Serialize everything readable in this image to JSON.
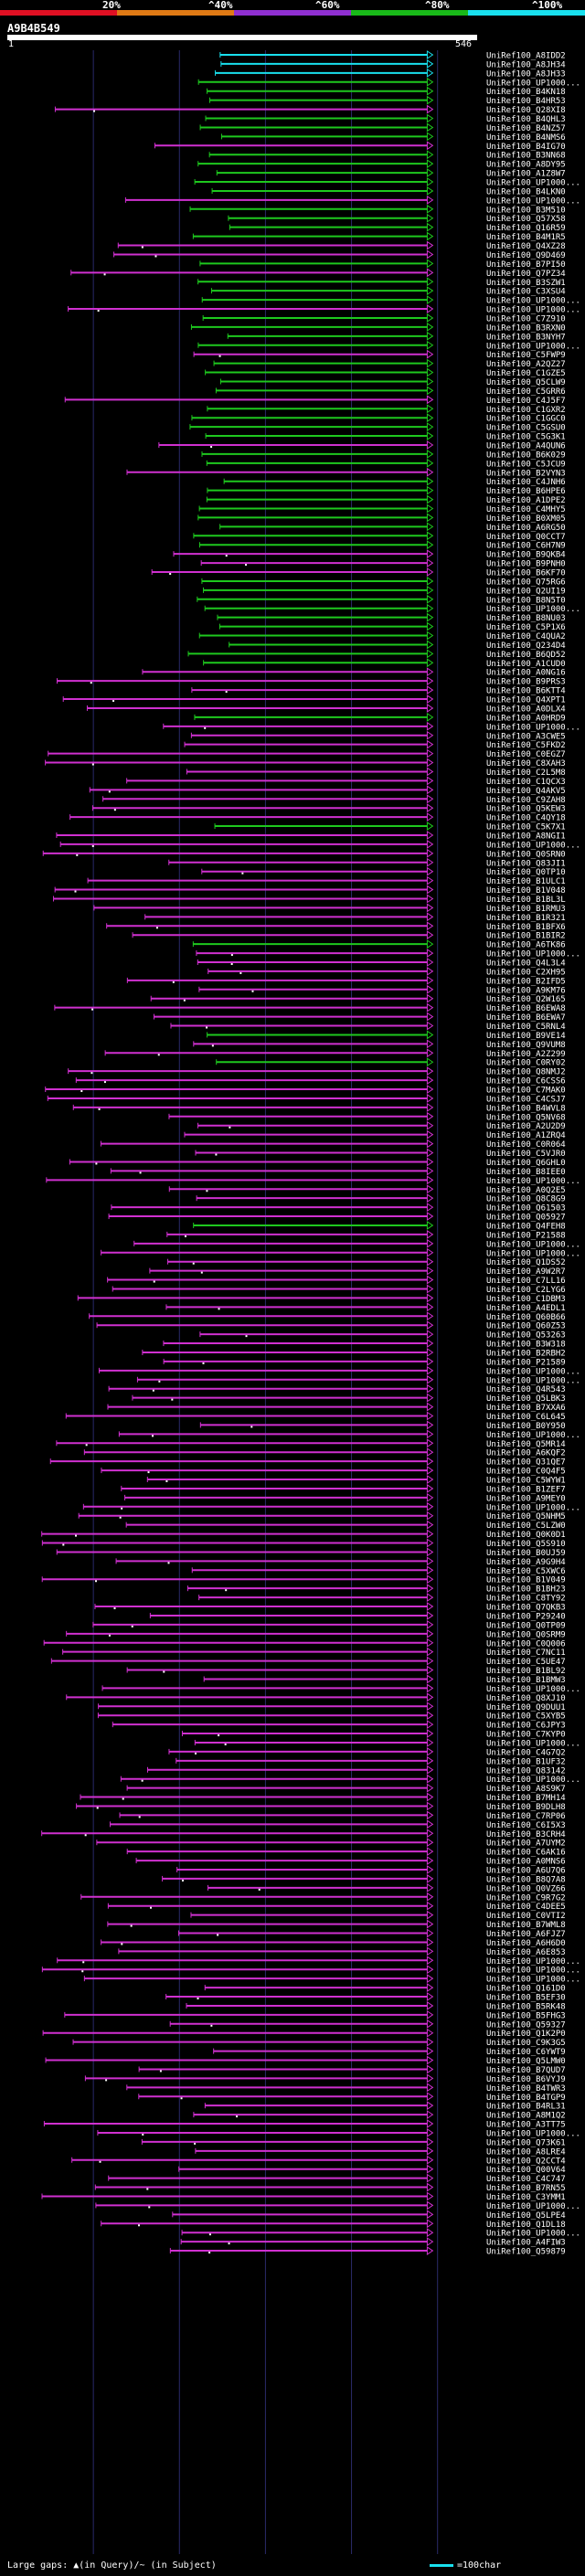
{
  "scale": {
    "labels": [
      "20%",
      "^40%",
      "^60%",
      "^80%",
      "^100%"
    ],
    "segments": [
      {
        "label": "0-20",
        "color": "#e01023"
      },
      {
        "label": "20-40",
        "color": "#e07a15"
      },
      {
        "label": "40-60",
        "color": "#8f2fd0"
      },
      {
        "label": "60-80",
        "color": "#19b919"
      },
      {
        "label": "80-100",
        "color": "#19e0ee"
      }
    ]
  },
  "query": {
    "id": "A9B4B549",
    "start": "1",
    "end": "546"
  },
  "colors": {
    "cyan": "#19e0ee",
    "green": "#1ec81e",
    "magenta": "#d030d0",
    "grid": "#2a2a6a"
  },
  "hits": [
    {
      "label": "UniRef100_A8IDD2",
      "c": "c"
    },
    {
      "label": "UniRef100_A8JH34",
      "c": "c"
    },
    {
      "label": "UniRef100_A8JH33",
      "c": "c"
    },
    {
      "label": "UniRef100_UP1000...",
      "c": "g"
    },
    {
      "label": "UniRef100_B4KN18",
      "c": "g"
    },
    {
      "label": "UniRef100_B4HR53",
      "c": "g"
    },
    {
      "label": "UniRef100_Q28XI8",
      "c": "m"
    },
    {
      "label": "UniRef100_B4QHL3",
      "c": "g"
    },
    {
      "label": "UniRef100_B4NZ57",
      "c": "g"
    },
    {
      "label": "UniRef100_B4NMS6",
      "c": "g"
    },
    {
      "label": "UniRef100_B4IG70",
      "c": "m"
    },
    {
      "label": "UniRef100_B3NN68",
      "c": "g"
    },
    {
      "label": "UniRef100_A8DY95",
      "c": "g"
    },
    {
      "label": "UniRef100_A1Z8W7",
      "c": "g"
    },
    {
      "label": "UniRef100_UP1000...",
      "c": "g"
    },
    {
      "label": "UniRef100_B4LKN0",
      "c": "g"
    },
    {
      "label": "UniRef100_UP1000...",
      "c": "m"
    },
    {
      "label": "UniRef100_B3M510",
      "c": "g"
    },
    {
      "label": "UniRef100_Q57X58",
      "c": "g"
    },
    {
      "label": "UniRef100_Q16R59",
      "c": "g"
    },
    {
      "label": "UniRef100_B4M1R5",
      "c": "g"
    },
    {
      "label": "UniRef100_Q4XZ28",
      "c": "m"
    },
    {
      "label": "UniRef100_Q9D469",
      "c": "m"
    },
    {
      "label": "UniRef100_B7PI50",
      "c": "g"
    },
    {
      "label": "UniRef100_Q7PZ34",
      "c": "m"
    },
    {
      "label": "UniRef100_B3SZW1",
      "c": "g"
    },
    {
      "label": "UniRef100_C3XSU4",
      "c": "g"
    },
    {
      "label": "UniRef100_UP1000...",
      "c": "g"
    },
    {
      "label": "UniRef100_UP1000...",
      "c": "m"
    },
    {
      "label": "UniRef100_C7Z910",
      "c": "g"
    },
    {
      "label": "UniRef100_B3RXN0",
      "c": "g"
    },
    {
      "label": "UniRef100_B3NYH7",
      "c": "g"
    },
    {
      "label": "UniRef100_UP1000...",
      "c": "g"
    },
    {
      "label": "UniRef100_C5FWP9",
      "c": "m"
    },
    {
      "label": "UniRef100_A2QZ27",
      "c": "g"
    },
    {
      "label": "UniRef100_C1GZE5",
      "c": "g"
    },
    {
      "label": "UniRef100_Q5CLW9",
      "c": "g"
    },
    {
      "label": "UniRef100_C5GRR6",
      "c": "g"
    },
    {
      "label": "UniRef100_C4J5F7",
      "c": "m"
    },
    {
      "label": "UniRef100_C1GXR2",
      "c": "g"
    },
    {
      "label": "UniRef100_C1GGC0",
      "c": "g"
    },
    {
      "label": "UniRef100_C5GSU0",
      "c": "g"
    },
    {
      "label": "UniRef100_C5G3K1",
      "c": "g"
    },
    {
      "label": "UniRef100_A4QUN6",
      "c": "m"
    },
    {
      "label": "UniRef100_B6K029",
      "c": "g"
    },
    {
      "label": "UniRef100_C5JCU9",
      "c": "g"
    },
    {
      "label": "UniRef100_B2VYN3",
      "c": "m"
    },
    {
      "label": "UniRef100_C4JNH6",
      "c": "g"
    },
    {
      "label": "UniRef100_B6HPE6",
      "c": "g"
    },
    {
      "label": "UniRef100_A1DPE2",
      "c": "g"
    },
    {
      "label": "UniRef100_C4MHY5",
      "c": "g"
    },
    {
      "label": "UniRef100_B0XM05",
      "c": "g"
    },
    {
      "label": "UniRef100_A6RG50",
      "c": "g"
    },
    {
      "label": "UniRef100_Q0CCT7",
      "c": "g"
    },
    {
      "label": "UniRef100_C6H7N9",
      "c": "g"
    },
    {
      "label": "UniRef100_B9QKB4",
      "c": "m"
    },
    {
      "label": "UniRef100_B9PNH0",
      "c": "m"
    },
    {
      "label": "UniRef100_B6KF70",
      "c": "m"
    },
    {
      "label": "UniRef100_Q75RG6",
      "c": "g"
    },
    {
      "label": "UniRef100_Q2UI19",
      "c": "g"
    },
    {
      "label": "UniRef100_B8N5T0",
      "c": "g"
    },
    {
      "label": "UniRef100_UP1000...",
      "c": "g"
    },
    {
      "label": "UniRef100_B8NU03",
      "c": "g"
    },
    {
      "label": "UniRef100_C5P1X6",
      "c": "g"
    },
    {
      "label": "UniRef100_C4QUA2",
      "c": "g"
    },
    {
      "label": "UniRef100_Q234D4",
      "c": "g"
    },
    {
      "label": "UniRef100_B6QD52",
      "c": "g"
    },
    {
      "label": "UniRef100_A1CUD0",
      "c": "g"
    },
    {
      "label": "UniRef100_A0NG16",
      "c": "m"
    },
    {
      "label": "UniRef100_B9PRS3",
      "c": "m"
    },
    {
      "label": "UniRef100_B6KTT4",
      "c": "m"
    },
    {
      "label": "UniRef100_Q4XPT1",
      "c": "m"
    },
    {
      "label": "UniRef100_A0DLX4",
      "c": "m"
    },
    {
      "label": "UniRef100_A0HRD9",
      "c": "g"
    },
    {
      "label": "UniRef100_UP1000...",
      "c": "m"
    },
    {
      "label": "UniRef100_A3CWE5",
      "c": "m"
    },
    {
      "label": "UniRef100_C5FKD2",
      "c": "m"
    },
    {
      "label": "UniRef100_C0EGZ7",
      "c": "m"
    },
    {
      "label": "UniRef100_C8XAH3",
      "c": "m"
    },
    {
      "label": "UniRef100_C2L5M8",
      "c": "m"
    },
    {
      "label": "UniRef100_C1QCX3",
      "c": "m"
    },
    {
      "label": "UniRef100_Q4AKV5",
      "c": "m"
    },
    {
      "label": "UniRef100_C9ZAH8",
      "c": "m"
    },
    {
      "label": "UniRef100_Q5KEW3",
      "c": "m"
    },
    {
      "label": "UniRef100_C4QY18",
      "c": "m"
    },
    {
      "label": "UniRef100_C5K7X1",
      "c": "g"
    },
    {
      "label": "UniRef100_A8NGI1",
      "c": "m"
    },
    {
      "label": "UniRef100_UP1000...",
      "c": "m"
    },
    {
      "label": "UniRef100_Q0SRN0",
      "c": "m"
    },
    {
      "label": "UniRef100_Q83JI1",
      "c": "m"
    },
    {
      "label": "UniRef100_Q0TP10",
      "c": "m"
    },
    {
      "label": "UniRef100_B1ULC1",
      "c": "m"
    },
    {
      "label": "UniRef100_B1V048",
      "c": "m"
    },
    {
      "label": "UniRef100_B1BL3L",
      "c": "m"
    },
    {
      "label": "UniRef100_B1RMU3",
      "c": "m"
    },
    {
      "label": "UniRef100_B1R321",
      "c": "m"
    },
    {
      "label": "UniRef100_B1BFX6",
      "c": "m"
    },
    {
      "label": "UniRef100_B1BIR2",
      "c": "m"
    },
    {
      "label": "UniRef100_A6TK86",
      "c": "g"
    },
    {
      "label": "UniRef100_UP1000...",
      "c": "m"
    },
    {
      "label": "UniRef100_Q4L3L4",
      "c": "m"
    },
    {
      "label": "UniRef100_C2XH95",
      "c": "m"
    },
    {
      "label": "UniRef100_B2IFD5",
      "c": "m"
    },
    {
      "label": "UniRef100_A9KM76",
      "c": "m"
    },
    {
      "label": "UniRef100_Q2W165",
      "c": "m"
    },
    {
      "label": "UniRef100_B6EWA8",
      "c": "m"
    },
    {
      "label": "UniRef100_B6EWA7",
      "c": "m"
    },
    {
      "label": "UniRef100_C5RNL4",
      "c": "m"
    },
    {
      "label": "UniRef100_B9VE14",
      "c": "g"
    },
    {
      "label": "UniRef100_Q9VUM8",
      "c": "m"
    },
    {
      "label": "UniRef100_A2Z299",
      "c": "m"
    },
    {
      "label": "UniRef100_C0RY02",
      "c": "g"
    },
    {
      "label": "UniRef100_Q8NMJ2",
      "c": "m"
    },
    {
      "label": "UniRef100_C6CSS6",
      "c": "m"
    },
    {
      "label": "UniRef100_C7MAK0",
      "c": "m"
    },
    {
      "label": "UniRef100_C4CSJ7",
      "c": "m"
    },
    {
      "label": "UniRef100_B4WVL8",
      "c": "m"
    },
    {
      "label": "UniRef100_Q5NV68",
      "c": "m"
    },
    {
      "label": "UniRef100_A2U2D9",
      "c": "m"
    },
    {
      "label": "UniRef100_A1ZRQ4",
      "c": "m"
    },
    {
      "label": "UniRef100_C0R064",
      "c": "m"
    },
    {
      "label": "UniRef100_C5VJR0",
      "c": "m"
    },
    {
      "label": "UniRef100_Q6GHL0",
      "c": "m"
    },
    {
      "label": "UniRef100_B8IEE0",
      "c": "m"
    },
    {
      "label": "UniRef100_UP1000...",
      "c": "m"
    },
    {
      "label": "UniRef100_A0Q2E5",
      "c": "m"
    },
    {
      "label": "UniRef100_Q8C8G9",
      "c": "m"
    },
    {
      "label": "UniRef100_Q61503",
      "c": "m"
    },
    {
      "label": "UniRef100_Q05927",
      "c": "m"
    },
    {
      "label": "UniRef100_Q4FEH8",
      "c": "g"
    },
    {
      "label": "UniRef100_P21588",
      "c": "m"
    },
    {
      "label": "UniRef100_UP1000...",
      "c": "m"
    },
    {
      "label": "UniRef100_UP1000...",
      "c": "m"
    },
    {
      "label": "UniRef100_Q1DS52",
      "c": "m"
    },
    {
      "label": "UniRef100_A9W2R7",
      "c": "m"
    },
    {
      "label": "UniRef100_C7LL16",
      "c": "m"
    },
    {
      "label": "UniRef100_C2LYG6",
      "c": "m"
    },
    {
      "label": "UniRef100_C1DBM3",
      "c": "m"
    },
    {
      "label": "UniRef100_A4EDL1",
      "c": "m"
    },
    {
      "label": "UniRef100_Q60B66",
      "c": "m"
    },
    {
      "label": "UniRef100_Q60Z53",
      "c": "m"
    },
    {
      "label": "UniRef100_Q53263",
      "c": "m"
    },
    {
      "label": "UniRef100_B3W318",
      "c": "m"
    },
    {
      "label": "UniRef100_B2RBH2",
      "c": "m"
    },
    {
      "label": "UniRef100_P21589",
      "c": "m"
    },
    {
      "label": "UniRef100_UP1000...",
      "c": "m"
    },
    {
      "label": "UniRef100_UP1000...",
      "c": "m"
    },
    {
      "label": "UniRef100_Q4R543",
      "c": "m"
    },
    {
      "label": "UniRef100_Q5LBK3",
      "c": "m"
    },
    {
      "label": "UniRef100_B7XXA6",
      "c": "m"
    },
    {
      "label": "UniRef100_C6L645",
      "c": "m"
    },
    {
      "label": "UniRef100_B0Y950",
      "c": "m"
    },
    {
      "label": "UniRef100_UP1000...",
      "c": "m"
    },
    {
      "label": "UniRef100_Q5MR14",
      "c": "m"
    },
    {
      "label": "UniRef100_A6KQF2",
      "c": "m"
    },
    {
      "label": "UniRef100_Q31QE7",
      "c": "m"
    },
    {
      "label": "UniRef100_C0Q4F5",
      "c": "m"
    },
    {
      "label": "UniRef100_C5WYW1",
      "c": "m"
    },
    {
      "label": "UniRef100_B1ZEF7",
      "c": "m"
    },
    {
      "label": "UniRef100_A9MEY0",
      "c": "m"
    },
    {
      "label": "UniRef100_UP1000...",
      "c": "m"
    },
    {
      "label": "UniRef100_Q5NHM5",
      "c": "m"
    },
    {
      "label": "UniRef100_C5LZW0",
      "c": "m"
    },
    {
      "label": "UniRef100_Q0K0D1",
      "c": "m"
    },
    {
      "label": "UniRef100_Q5S910",
      "c": "m"
    },
    {
      "label": "UniRef100_B0UJ59",
      "c": "m"
    },
    {
      "label": "UniRef100_A9G9H4",
      "c": "m"
    },
    {
      "label": "UniRef100_C5XWC6",
      "c": "m"
    },
    {
      "label": "UniRef100_B1V049",
      "c": "m"
    },
    {
      "label": "UniRef100_B1BH23",
      "c": "m"
    },
    {
      "label": "UniRef100_C8TY92",
      "c": "m"
    },
    {
      "label": "UniRef100_Q7QKB3",
      "c": "m"
    },
    {
      "label": "UniRef100_P29240",
      "c": "m"
    },
    {
      "label": "UniRef100_Q0TP09",
      "c": "m"
    },
    {
      "label": "UniRef100_Q0SRM9",
      "c": "m"
    },
    {
      "label": "UniRef100_C0Q006",
      "c": "m"
    },
    {
      "label": "UniRef100_C7NC11",
      "c": "m"
    },
    {
      "label": "UniRef100_C5UE47",
      "c": "m"
    },
    {
      "label": "UniRef100_B1BL92",
      "c": "m"
    },
    {
      "label": "UniRef100_B1BMW3",
      "c": "m"
    },
    {
      "label": "UniRef100_UP1000...",
      "c": "m"
    },
    {
      "label": "UniRef100_Q8XJ10",
      "c": "m"
    },
    {
      "label": "UniRef100_Q9DUU1",
      "c": "m"
    },
    {
      "label": "UniRef100_C5XYB5",
      "c": "m"
    },
    {
      "label": "UniRef100_C6JPY3",
      "c": "m"
    },
    {
      "label": "UniRef100_C7KYP0",
      "c": "m"
    },
    {
      "label": "UniRef100_UP1000...",
      "c": "m"
    },
    {
      "label": "UniRef100_C4G7Q2",
      "c": "m"
    },
    {
      "label": "UniRef100_B1UF32",
      "c": "m"
    },
    {
      "label": "UniRef100_Q83142",
      "c": "m"
    },
    {
      "label": "UniRef100_UP1000...",
      "c": "m"
    },
    {
      "label": "UniRef100_A8S9K7",
      "c": "m"
    },
    {
      "label": "UniRef100_B7MH14",
      "c": "m"
    },
    {
      "label": "UniRef100_B9DLH8",
      "c": "m"
    },
    {
      "label": "UniRef100_C7RP06",
      "c": "m"
    },
    {
      "label": "UniRef100_C6I5X3",
      "c": "m"
    },
    {
      "label": "UniRef100_B3CRH4",
      "c": "m"
    },
    {
      "label": "UniRef100_A7UYM2",
      "c": "m"
    },
    {
      "label": "UniRef100_C6AK16",
      "c": "m"
    },
    {
      "label": "UniRef100_A0MNS6",
      "c": "m"
    },
    {
      "label": "UniRef100_A6U7Q6",
      "c": "m"
    },
    {
      "label": "UniRef100_B8Q7A8",
      "c": "m"
    },
    {
      "label": "UniRef100_Q0VZ66",
      "c": "m"
    },
    {
      "label": "UniRef100_C9R7G2",
      "c": "m"
    },
    {
      "label": "UniRef100_C4DEE5",
      "c": "m"
    },
    {
      "label": "UniRef100_C0VTI2",
      "c": "m"
    },
    {
      "label": "UniRef100_B7WML8",
      "c": "m"
    },
    {
      "label": "UniRef100_A6FJZ7",
      "c": "m"
    },
    {
      "label": "UniRef100_A6H6D0",
      "c": "m"
    },
    {
      "label": "UniRef100_A6E853",
      "c": "m"
    },
    {
      "label": "UniRef100_UP1000...",
      "c": "m"
    },
    {
      "label": "UniRef100_UP1000...",
      "c": "m"
    },
    {
      "label": "UniRef100_UP1000...",
      "c": "m"
    },
    {
      "label": "UniRef100_Q161D0",
      "c": "m"
    },
    {
      "label": "UniRef100_B5EF30",
      "c": "m"
    },
    {
      "label": "UniRef100_B5RK48",
      "c": "m"
    },
    {
      "label": "UniRef100_B5FHG3",
      "c": "m"
    },
    {
      "label": "UniRef100_Q59327",
      "c": "m"
    },
    {
      "label": "UniRef100_Q1K2P0",
      "c": "m"
    },
    {
      "label": "UniRef100_C9K3G5",
      "c": "m"
    },
    {
      "label": "UniRef100_C6YWT9",
      "c": "m"
    },
    {
      "label": "UniRef100_Q5LMW0",
      "c": "m"
    },
    {
      "label": "UniRef100_B7QUD7",
      "c": "m"
    },
    {
      "label": "UniRef100_B6VYJ9",
      "c": "m"
    },
    {
      "label": "UniRef100_B4TWR3",
      "c": "m"
    },
    {
      "label": "UniRef100_B4TGP9",
      "c": "m"
    },
    {
      "label": "UniRef100_B4RL31",
      "c": "m"
    },
    {
      "label": "UniRef100_A8M1Q2",
      "c": "m"
    },
    {
      "label": "UniRef100_A3TT75",
      "c": "m"
    },
    {
      "label": "UniRef100_UP1000...",
      "c": "m"
    },
    {
      "label": "UniRef100_Q73K61",
      "c": "m"
    },
    {
      "label": "UniRef100_A8LRE4",
      "c": "m"
    },
    {
      "label": "UniRef100_Q2CCT4",
      "c": "m"
    },
    {
      "label": "UniRef100_Q00V64",
      "c": "m"
    },
    {
      "label": "UniRef100_C4C747",
      "c": "m"
    },
    {
      "label": "UniRef100_B7RN55",
      "c": "m"
    },
    {
      "label": "UniRef100_C3YMM1",
      "c": "m"
    },
    {
      "label": "UniRef100_UP1000...",
      "c": "m"
    },
    {
      "label": "UniRef100_Q5LPE4",
      "c": "m"
    },
    {
      "label": "UniRef100_Q1DL18",
      "c": "m"
    },
    {
      "label": "UniRef100_UP1000...",
      "c": "m"
    },
    {
      "label": "UniRef100_A4FIW3",
      "c": "m"
    },
    {
      "label": "UniRef100_Q59879",
      "c": "m"
    }
  ],
  "footer": {
    "large_gaps": "Large gaps: ▲(in Query)/~ (in Subject)",
    "scale_legend": "=100char"
  }
}
